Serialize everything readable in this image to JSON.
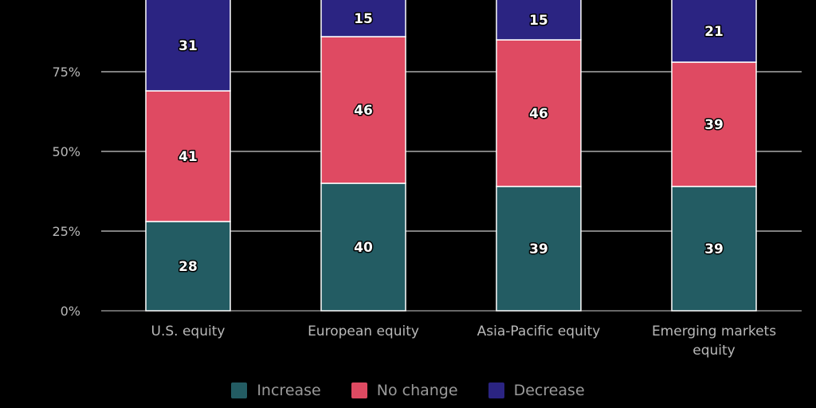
{
  "chart_data": {
    "type": "bar",
    "stacked": true,
    "orientation": "vertical",
    "categories": [
      "U.S. equity",
      "European equity",
      "Asia-Pacific equity",
      "Emerging markets equity"
    ],
    "series": [
      {
        "name": "Increase",
        "color": "#235c63",
        "values": [
          28,
          40,
          39,
          39
        ]
      },
      {
        "name": "No change",
        "color": "#df4a62",
        "values": [
          41,
          46,
          46,
          39
        ]
      },
      {
        "name": "Decrease",
        "color": "#2b2482",
        "values": [
          31,
          15,
          15,
          21
        ]
      }
    ],
    "y_ticks": [
      "0%",
      "25%",
      "50%",
      "75%"
    ],
    "ylim": [
      0,
      100
    ],
    "grid": true,
    "legend_position": "bottom"
  }
}
